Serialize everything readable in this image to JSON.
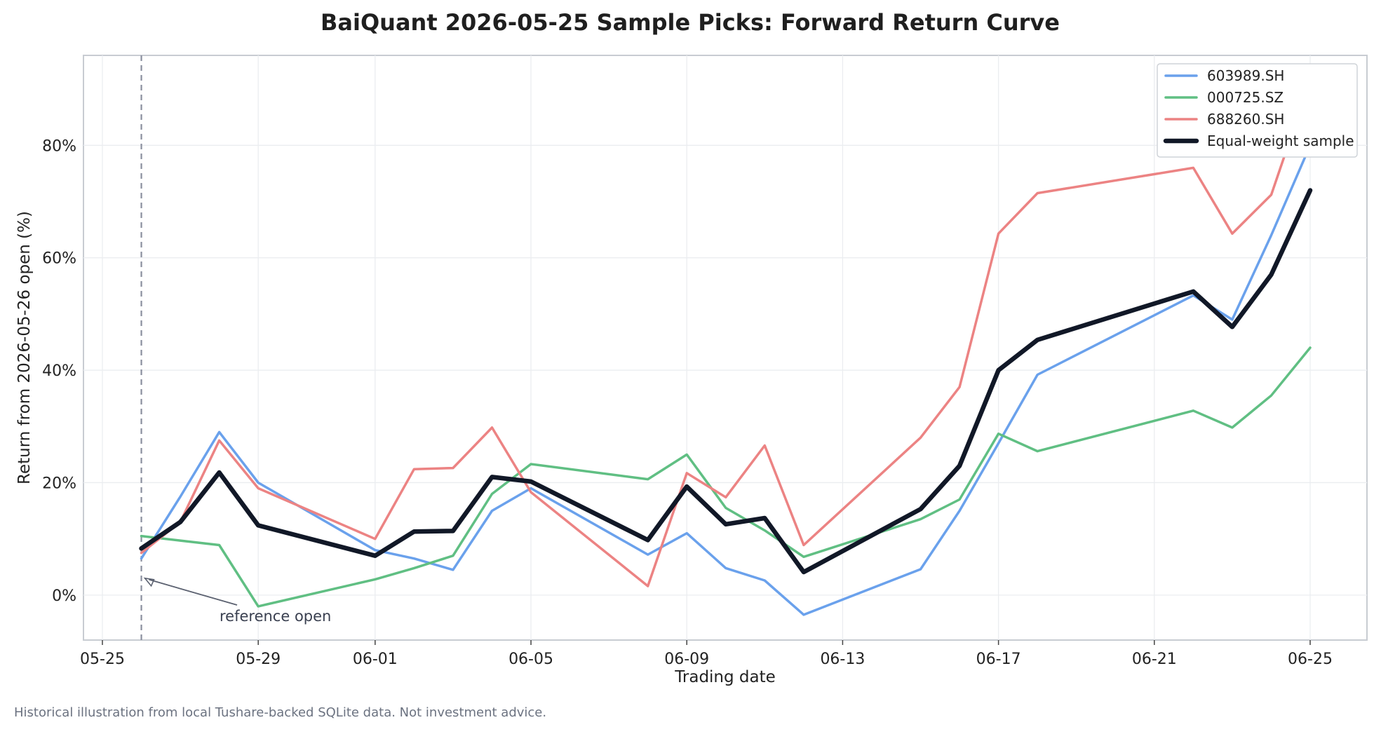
{
  "footnote": "Historical illustration from local Tushare-backed SQLite data. Not investment advice.",
  "chart_data": {
    "type": "line",
    "title": "BaiQuant 2026-05-25 Sample Picks: Forward Return Curve",
    "xlabel": "Trading date",
    "ylabel": "Return from 2026-05-26 open (%)",
    "x_ticks": [
      "05-25",
      "05-29",
      "06-01",
      "06-05",
      "06-09",
      "06-13",
      "06-17",
      "06-21",
      "06-25"
    ],
    "y_ticks": [
      "0%",
      "20%",
      "40%",
      "60%",
      "80%"
    ],
    "ylim": [
      -8,
      96
    ],
    "grid": true,
    "legend_position": "top-right",
    "x": [
      "2026-05-26",
      "2026-05-27",
      "2026-05-28",
      "2026-05-29",
      "2026-06-01",
      "2026-06-02",
      "2026-06-03",
      "2026-06-04",
      "2026-06-05",
      "2026-06-08",
      "2026-06-09",
      "2026-06-10",
      "2026-06-11",
      "2026-06-12",
      "2026-06-15",
      "2026-06-16",
      "2026-06-17",
      "2026-06-18",
      "2026-06-22",
      "2026-06-23",
      "2026-06-24",
      "2026-06-25"
    ],
    "series": [
      {
        "name": "603989.SH",
        "color": "#6aa1ec",
        "width": 3.5,
        "values": [
          6.5,
          17.5,
          29.0,
          20.0,
          8.0,
          6.5,
          4.5,
          15.0,
          19.0,
          7.2,
          11.0,
          4.8,
          2.6,
          -3.5,
          4.6,
          15.0,
          27.0,
          39.2,
          53.3,
          49.0,
          64.0,
          80.0
        ]
      },
      {
        "name": "000725.SZ",
        "color": "#60bf83",
        "width": 3.5,
        "values": [
          10.5,
          9.7,
          8.9,
          -2.0,
          2.8,
          4.8,
          7.0,
          18.0,
          23.3,
          20.6,
          25.0,
          15.5,
          11.5,
          6.8,
          13.5,
          17.0,
          28.7,
          25.6,
          32.8,
          29.8,
          35.5,
          44.0
        ]
      },
      {
        "name": "688260.SH",
        "color": "#ec8383",
        "width": 3.5,
        "values": [
          7.5,
          13.0,
          27.5,
          19.0,
          10.0,
          22.4,
          22.6,
          29.8,
          18.3,
          1.6,
          21.7,
          17.4,
          26.6,
          8.9,
          28.0,
          37.0,
          64.3,
          71.5,
          76.0,
          64.3,
          71.2,
          91.5
        ]
      },
      {
        "name": "Equal-weight sample",
        "color": "#111827",
        "width": 6.5,
        "values": [
          8.3,
          13.0,
          21.8,
          12.4,
          7.0,
          11.3,
          11.4,
          21.0,
          20.2,
          9.8,
          19.3,
          12.6,
          13.7,
          4.1,
          15.3,
          23.0,
          40.0,
          45.4,
          54.0,
          47.7,
          57.0,
          72.0
        ]
      }
    ],
    "reference_line": {
      "x": "2026-05-26"
    },
    "annotation": {
      "text": "reference open",
      "x": "2026-05-26",
      "y": 3
    }
  }
}
